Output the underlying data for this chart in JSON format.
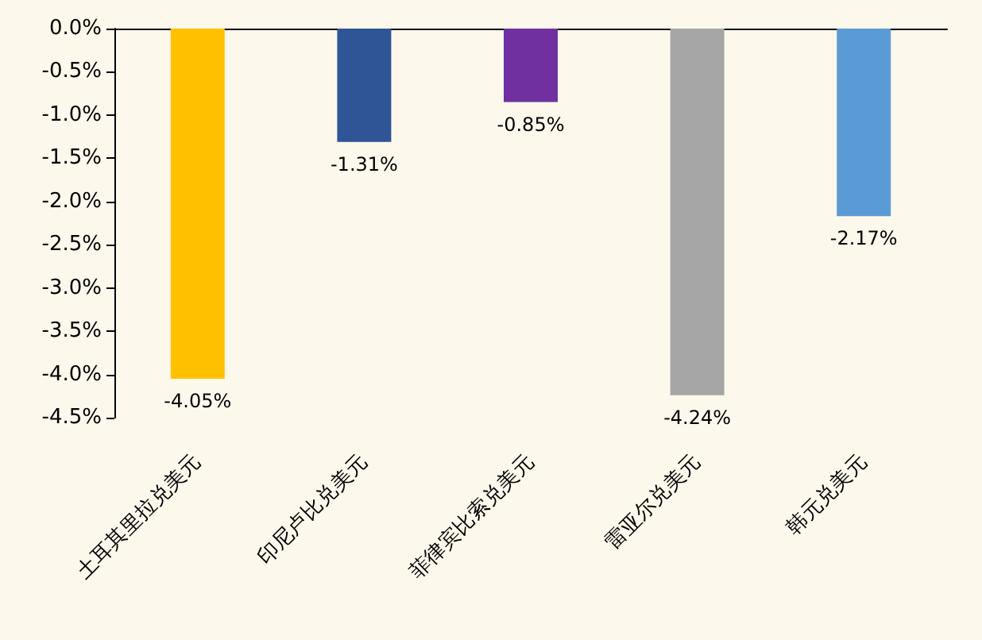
{
  "chart_data": {
    "type": "bar",
    "categories": [
      "土耳其里拉兑美元",
      "印尼卢比兑美元",
      "菲律宾比索兑美元",
      "雷亚尔兑美元",
      "韩元兑美元"
    ],
    "values": [
      -4.05,
      -1.31,
      -0.85,
      -4.24,
      -2.17
    ],
    "colors": [
      "#ffc000",
      "#2f5597",
      "#7030a0",
      "#a6a6a6",
      "#5b9bd5"
    ],
    "value_labels": [
      "-4.05%",
      "-1.31%",
      "-0.85%",
      "-4.24%",
      "-2.17%"
    ],
    "ylim": [
      -4.5,
      0
    ],
    "yticks": [
      {
        "value": 0,
        "label": "0.0%"
      },
      {
        "value": -0.5,
        "label": "-0.5%"
      },
      {
        "value": -1,
        "label": "-1.0%"
      },
      {
        "value": -1.5,
        "label": "-1.5%"
      },
      {
        "value": -2,
        "label": "-2.0%"
      },
      {
        "value": -2.5,
        "label": "-2.5%"
      },
      {
        "value": -3,
        "label": "-3.0%"
      },
      {
        "value": -3.5,
        "label": "-3.5%"
      },
      {
        "value": -4,
        "label": "-4.0%"
      },
      {
        "value": -4.5,
        "label": "-4.5%"
      }
    ],
    "grid": false
  }
}
